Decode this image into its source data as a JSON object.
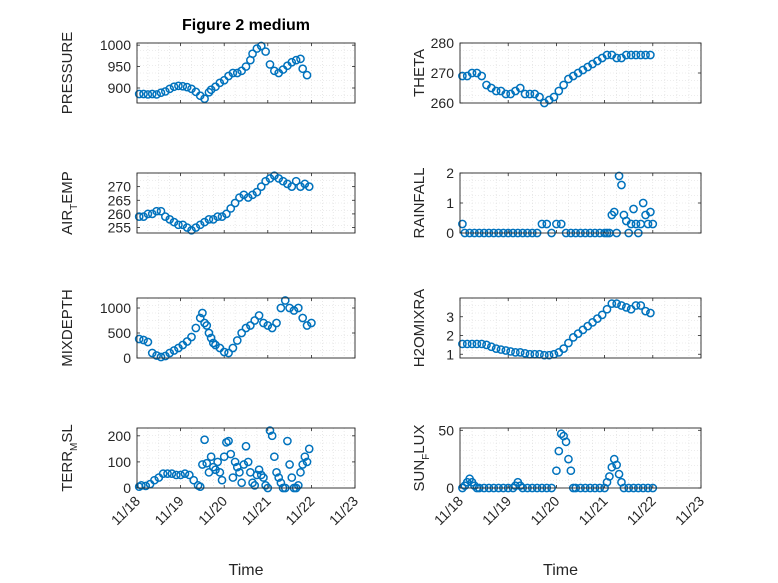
{
  "figure": {
    "title": "Figure 2 medium"
  },
  "style": {
    "marker_color": "#0072bd",
    "axis_color": "#262626",
    "grid_color": "#d9d9d9",
    "background": "#ffffff"
  },
  "chart_data": [
    {
      "type": "scatter",
      "id": "pressure",
      "ylabel": "PRESSURE",
      "ylim": [
        865,
        1005
      ],
      "yticks": [
        900,
        950,
        1000
      ],
      "xlim": [
        0,
        5
      ],
      "xticks": [],
      "title": "Figure 2 medium",
      "x": [
        0.05,
        0.15,
        0.25,
        0.35,
        0.45,
        0.55,
        0.65,
        0.75,
        0.85,
        0.95,
        1.05,
        1.15,
        1.25,
        1.35,
        1.45,
        1.55,
        1.65,
        1.7,
        1.8,
        1.9,
        2.0,
        2.1,
        2.2,
        2.3,
        2.4,
        2.5,
        2.6,
        2.65,
        2.75,
        2.85,
        2.95,
        3.05,
        3.15,
        3.25,
        3.35,
        3.45,
        3.55,
        3.65,
        3.75,
        3.8,
        3.9
      ],
      "y": [
        886,
        886,
        885,
        886,
        885,
        889,
        892,
        898,
        903,
        905,
        904,
        902,
        898,
        891,
        882,
        875,
        890,
        896,
        903,
        912,
        918,
        928,
        935,
        935,
        940,
        950,
        965,
        980,
        992,
        998,
        985,
        955,
        940,
        935,
        943,
        952,
        960,
        965,
        968,
        945,
        930
      ]
    },
    {
      "type": "scatter",
      "id": "theta",
      "ylabel": "THETA",
      "ylim": [
        260,
        280
      ],
      "yticks": [
        260,
        270,
        280
      ],
      "xlim": [
        0,
        5
      ],
      "xticks": [],
      "x": [
        0.05,
        0.15,
        0.25,
        0.35,
        0.45,
        0.55,
        0.65,
        0.75,
        0.85,
        0.95,
        1.05,
        1.15,
        1.25,
        1.35,
        1.45,
        1.55,
        1.65,
        1.75,
        1.85,
        1.95,
        2.05,
        2.15,
        2.25,
        2.35,
        2.45,
        2.55,
        2.65,
        2.75,
        2.85,
        2.95,
        3.05,
        3.15,
        3.25,
        3.35,
        3.45,
        3.55,
        3.65,
        3.75,
        3.85,
        3.95
      ],
      "y": [
        269,
        269,
        270,
        270,
        269,
        266,
        265,
        264,
        264,
        263,
        263,
        264,
        265,
        263,
        263,
        263,
        262,
        260,
        261,
        262,
        264,
        266,
        268,
        269,
        270,
        271,
        272,
        273,
        274,
        275,
        276,
        276,
        275,
        275,
        276,
        276,
        276,
        276,
        276,
        276
      ]
    },
    {
      "type": "scatter",
      "id": "air_temp",
      "ylabel": "AIR_TEMP",
      "ylabel_parts": [
        "AIR",
        "T",
        "EMP"
      ],
      "ylim": [
        253,
        275
      ],
      "yticks": [
        255,
        260,
        265,
        270
      ],
      "xlim": [
        0,
        5
      ],
      "xticks": [],
      "x": [
        0.05,
        0.15,
        0.25,
        0.35,
        0.45,
        0.55,
        0.65,
        0.75,
        0.85,
        0.95,
        1.05,
        1.15,
        1.25,
        1.35,
        1.45,
        1.55,
        1.65,
        1.75,
        1.85,
        1.95,
        2.05,
        2.15,
        2.25,
        2.35,
        2.45,
        2.55,
        2.65,
        2.75,
        2.85,
        2.95,
        3.05,
        3.15,
        3.25,
        3.35,
        3.45,
        3.55,
        3.65,
        3.75,
        3.85,
        3.95
      ],
      "y": [
        259,
        259,
        260,
        260,
        261,
        261,
        259,
        258,
        257,
        256,
        256,
        255,
        254,
        255,
        256,
        257,
        258,
        258,
        259,
        259,
        260,
        262,
        264,
        266,
        267,
        266,
        267,
        268,
        270,
        272,
        273,
        274,
        273,
        272,
        271,
        270,
        272,
        270,
        271,
        270
      ]
    },
    {
      "type": "scatter",
      "id": "rainfall",
      "ylabel": "RAINFALL",
      "ylim": [
        0,
        2
      ],
      "yticks": [
        0,
        1,
        2
      ],
      "xlim": [
        0,
        5
      ],
      "xticks": [],
      "x": [
        0.05,
        0.1,
        0.2,
        0.3,
        0.4,
        0.5,
        0.6,
        0.7,
        0.8,
        0.9,
        1.0,
        1.1,
        1.2,
        1.3,
        1.4,
        1.5,
        1.6,
        1.7,
        1.8,
        1.9,
        2.0,
        2.1,
        2.2,
        2.3,
        2.4,
        2.5,
        2.6,
        2.7,
        2.8,
        2.9,
        3.0,
        3.05,
        3.1,
        3.15,
        3.2,
        3.25,
        3.3,
        3.35,
        3.4,
        3.45,
        3.5,
        3.55,
        3.6,
        3.65,
        3.7,
        3.75,
        3.8,
        3.85,
        3.9,
        3.95,
        4.0
      ],
      "y": [
        0.3,
        0,
        0,
        0,
        0,
        0,
        0,
        0,
        0,
        0,
        0,
        0,
        0,
        0,
        0,
        0,
        0,
        0.3,
        0.3,
        0,
        0.3,
        0.3,
        0,
        0,
        0,
        0,
        0,
        0,
        0,
        0,
        0,
        0,
        0,
        0.6,
        0.7,
        0,
        1.9,
        1.6,
        0.6,
        0.4,
        0,
        0.3,
        0.8,
        0.3,
        0,
        0.3,
        1.0,
        0.6,
        0.3,
        0.7,
        0.3
      ]
    },
    {
      "type": "scatter",
      "id": "mixdepth",
      "ylabel": "MIXDEPTH",
      "ylim": [
        0,
        1200
      ],
      "yticks": [
        0,
        500,
        1000
      ],
      "xlim": [
        0,
        5
      ],
      "xticks": [],
      "x": [
        0.05,
        0.15,
        0.25,
        0.35,
        0.45,
        0.55,
        0.65,
        0.75,
        0.85,
        0.95,
        1.05,
        1.15,
        1.25,
        1.35,
        1.45,
        1.5,
        1.55,
        1.6,
        1.65,
        1.7,
        1.75,
        1.8,
        1.9,
        2.0,
        2.1,
        2.2,
        2.3,
        2.4,
        2.5,
        2.6,
        2.7,
        2.8,
        2.9,
        3.0,
        3.1,
        3.2,
        3.3,
        3.4,
        3.5,
        3.6,
        3.7,
        3.8,
        3.9,
        4.0
      ],
      "y": [
        380,
        360,
        320,
        100,
        50,
        20,
        40,
        100,
        150,
        200,
        260,
        330,
        420,
        600,
        800,
        900,
        700,
        650,
        500,
        400,
        300,
        260,
        200,
        120,
        100,
        200,
        350,
        500,
        600,
        650,
        750,
        850,
        700,
        650,
        600,
        700,
        1000,
        1150,
        1000,
        950,
        1000,
        800,
        650,
        700
      ]
    },
    {
      "type": "scatter",
      "id": "h2omixra",
      "ylabel": "H2OMIXRA",
      "ylim": [
        0.8,
        4.0
      ],
      "yticks": [
        1,
        2,
        3
      ],
      "xlim": [
        0,
        5
      ],
      "xticks": [],
      "x": [
        0.05,
        0.15,
        0.25,
        0.35,
        0.45,
        0.55,
        0.65,
        0.75,
        0.85,
        0.95,
        1.05,
        1.15,
        1.25,
        1.35,
        1.45,
        1.55,
        1.65,
        1.75,
        1.85,
        1.95,
        2.05,
        2.15,
        2.25,
        2.35,
        2.45,
        2.55,
        2.65,
        2.75,
        2.85,
        2.95,
        3.05,
        3.15,
        3.25,
        3.35,
        3.45,
        3.55,
        3.65,
        3.75,
        3.85,
        3.95
      ],
      "y": [
        1.55,
        1.55,
        1.55,
        1.55,
        1.55,
        1.5,
        1.4,
        1.3,
        1.25,
        1.2,
        1.15,
        1.1,
        1.1,
        1.05,
        1.0,
        1.0,
        1.0,
        0.95,
        0.95,
        1.0,
        1.1,
        1.3,
        1.6,
        1.9,
        2.1,
        2.3,
        2.5,
        2.7,
        2.9,
        3.1,
        3.4,
        3.7,
        3.7,
        3.6,
        3.5,
        3.4,
        3.6,
        3.6,
        3.3,
        3.2
      ]
    },
    {
      "type": "scatter",
      "id": "terr_msl",
      "ylabel": "TERR_MSL",
      "ylabel_parts": [
        "TERR",
        "M",
        "SL"
      ],
      "ylim": [
        0,
        230
      ],
      "yticks": [
        0,
        100,
        200
      ],
      "xlim": [
        0,
        5
      ],
      "xticks": [
        "11/18",
        "11/19",
        "11/20",
        "11/21",
        "11/22",
        "11/23"
      ],
      "xtick_values": [
        0,
        1,
        2,
        3,
        4,
        5
      ],
      "xlabel": "Time",
      "x": [
        0.05,
        0.1,
        0.2,
        0.3,
        0.4,
        0.5,
        0.6,
        0.7,
        0.8,
        0.9,
        1.0,
        1.1,
        1.2,
        1.3,
        1.4,
        1.45,
        1.5,
        1.55,
        1.6,
        1.65,
        1.7,
        1.75,
        1.8,
        1.85,
        1.9,
        1.95,
        2.0,
        2.05,
        2.1,
        2.15,
        2.2,
        2.25,
        2.3,
        2.35,
        2.4,
        2.45,
        2.5,
        2.55,
        2.6,
        2.65,
        2.7,
        2.75,
        2.8,
        2.85,
        2.9,
        2.95,
        3.0,
        3.05,
        3.1,
        3.15,
        3.2,
        3.25,
        3.3,
        3.35,
        3.4,
        3.45,
        3.5,
        3.55,
        3.6,
        3.65,
        3.7,
        3.75,
        3.8,
        3.85,
        3.9,
        3.95
      ],
      "y": [
        5,
        10,
        8,
        15,
        30,
        40,
        55,
        55,
        55,
        50,
        50,
        55,
        50,
        30,
        10,
        5,
        90,
        185,
        95,
        60,
        120,
        80,
        70,
        100,
        60,
        30,
        120,
        175,
        180,
        130,
        40,
        100,
        80,
        60,
        20,
        90,
        160,
        100,
        60,
        20,
        10,
        50,
        70,
        50,
        40,
        10,
        0,
        220,
        200,
        120,
        60,
        40,
        20,
        0,
        0,
        180,
        90,
        40,
        0,
        0,
        10,
        60,
        90,
        120,
        100,
        150
      ]
    },
    {
      "type": "scatter",
      "id": "sun_flux",
      "ylabel": "SUN_FLUX",
      "ylabel_parts": [
        "SUN",
        "F",
        "LUX"
      ],
      "ylim": [
        0,
        52
      ],
      "yticks": [
        0,
        50
      ],
      "xlim": [
        0,
        5
      ],
      "xticks": [
        "11/18",
        "11/19",
        "11/20",
        "11/21",
        "11/22",
        "11/23"
      ],
      "xtick_values": [
        0,
        1,
        2,
        3,
        4,
        5
      ],
      "xlabel": "Time",
      "x": [
        0.05,
        0.1,
        0.15,
        0.2,
        0.25,
        0.3,
        0.35,
        0.4,
        0.5,
        0.6,
        0.7,
        0.8,
        0.9,
        1.0,
        1.1,
        1.15,
        1.2,
        1.25,
        1.3,
        1.4,
        1.5,
        1.6,
        1.7,
        1.8,
        1.9,
        2.0,
        2.05,
        2.1,
        2.15,
        2.2,
        2.25,
        2.3,
        2.35,
        2.4,
        2.5,
        2.6,
        2.7,
        2.8,
        2.9,
        3.0,
        3.05,
        3.1,
        3.15,
        3.2,
        3.25,
        3.3,
        3.35,
        3.4,
        3.5,
        3.6,
        3.7,
        3.8,
        3.9,
        4.0
      ],
      "y": [
        0,
        2,
        5,
        8,
        5,
        2,
        0,
        0,
        0,
        0,
        0,
        0,
        0,
        0,
        0,
        2,
        5,
        2,
        0,
        0,
        0,
        0,
        0,
        0,
        0,
        15,
        32,
        47,
        45,
        40,
        25,
        15,
        0,
        0,
        0,
        0,
        0,
        0,
        0,
        0,
        5,
        10,
        18,
        25,
        20,
        12,
        5,
        0,
        0,
        0,
        0,
        0,
        0,
        0
      ]
    }
  ]
}
